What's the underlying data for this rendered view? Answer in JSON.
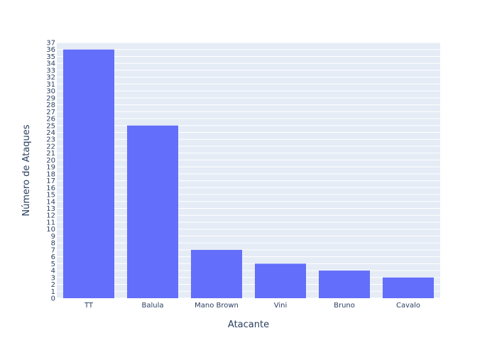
{
  "chart_data": {
    "type": "bar",
    "categories": [
      "TT",
      "Balula",
      "Mano Brown",
      "Vini",
      "Bruno",
      "Cavalo"
    ],
    "values": [
      36,
      25,
      7,
      5,
      4,
      3
    ],
    "xlabel": "Atacante",
    "ylabel": "Número de Ataques",
    "ylim": [
      0,
      37
    ],
    "yticks": [
      0,
      1,
      2,
      3,
      4,
      5,
      6,
      7,
      8,
      9,
      10,
      11,
      12,
      13,
      14,
      15,
      16,
      17,
      18,
      19,
      20,
      21,
      22,
      23,
      24,
      25,
      26,
      27,
      28,
      29,
      30,
      31,
      32,
      33,
      34,
      35,
      36,
      37
    ],
    "grid": true,
    "colors": {
      "bar": "#636efa",
      "plot_bg": "#e5ecf6",
      "grid": "#ffffff"
    }
  }
}
